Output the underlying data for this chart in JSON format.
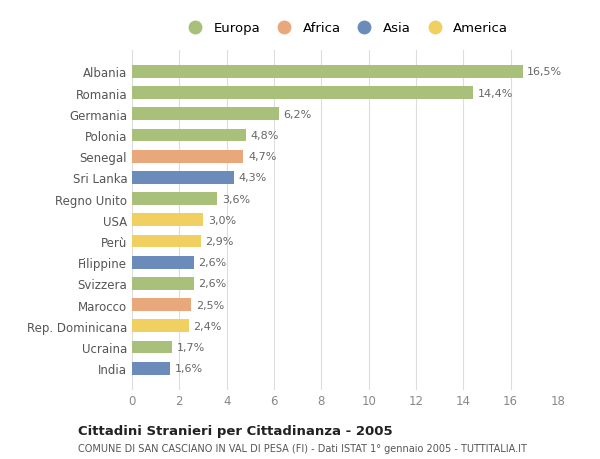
{
  "countries": [
    "Albania",
    "Romania",
    "Germania",
    "Polonia",
    "Senegal",
    "Sri Lanka",
    "Regno Unito",
    "USA",
    "Perù",
    "Filippine",
    "Svizzera",
    "Marocco",
    "Rep. Dominicana",
    "Ucraina",
    "India"
  ],
  "values": [
    16.5,
    14.4,
    6.2,
    4.8,
    4.7,
    4.3,
    3.6,
    3.0,
    2.9,
    2.6,
    2.6,
    2.5,
    2.4,
    1.7,
    1.6
  ],
  "labels": [
    "16,5%",
    "14,4%",
    "6,2%",
    "4,8%",
    "4,7%",
    "4,3%",
    "3,6%",
    "3,0%",
    "2,9%",
    "2,6%",
    "2,6%",
    "2,5%",
    "2,4%",
    "1,7%",
    "1,6%"
  ],
  "continents": [
    "Europa",
    "Europa",
    "Europa",
    "Europa",
    "Africa",
    "Asia",
    "Europa",
    "America",
    "America",
    "Asia",
    "Europa",
    "Africa",
    "America",
    "Europa",
    "Asia"
  ],
  "colors": {
    "Europa": "#a8c07a",
    "Africa": "#e8a87c",
    "Asia": "#6b8cba",
    "America": "#f0d060"
  },
  "xlim": [
    0,
    18
  ],
  "xticks": [
    0,
    2,
    4,
    6,
    8,
    10,
    12,
    14,
    16,
    18
  ],
  "title": "Cittadini Stranieri per Cittadinanza - 2005",
  "subtitle": "COMUNE DI SAN CASCIANO IN VAL DI PESA (FI) - Dati ISTAT 1° gennaio 2005 - TUTTITALIA.IT",
  "bg_color": "#ffffff",
  "grid_color": "#dddddd",
  "bar_height": 0.6,
  "legend_order": [
    "Europa",
    "Africa",
    "Asia",
    "America"
  ]
}
